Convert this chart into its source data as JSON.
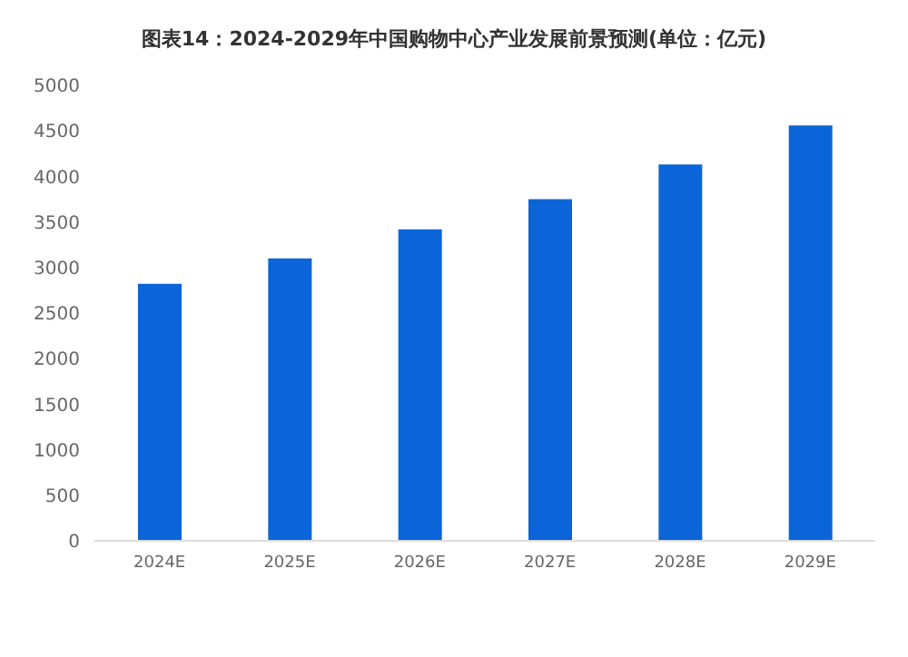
{
  "chart_data": {
    "type": "bar",
    "title": "图表14：2024-2029年中国购物中心产业发展前景预测(单位：亿元)",
    "categories": [
      "2024E",
      "2025E",
      "2026E",
      "2027E",
      "2028E",
      "2029E"
    ],
    "values": [
      2820,
      3100,
      3420,
      3750,
      4130,
      4560
    ],
    "color": "#0b65d8",
    "ylim": [
      0,
      5000
    ],
    "yticks": [
      0,
      500,
      1000,
      1500,
      2000,
      2500,
      3000,
      3500,
      4000,
      4500,
      5000
    ],
    "grid": false
  }
}
